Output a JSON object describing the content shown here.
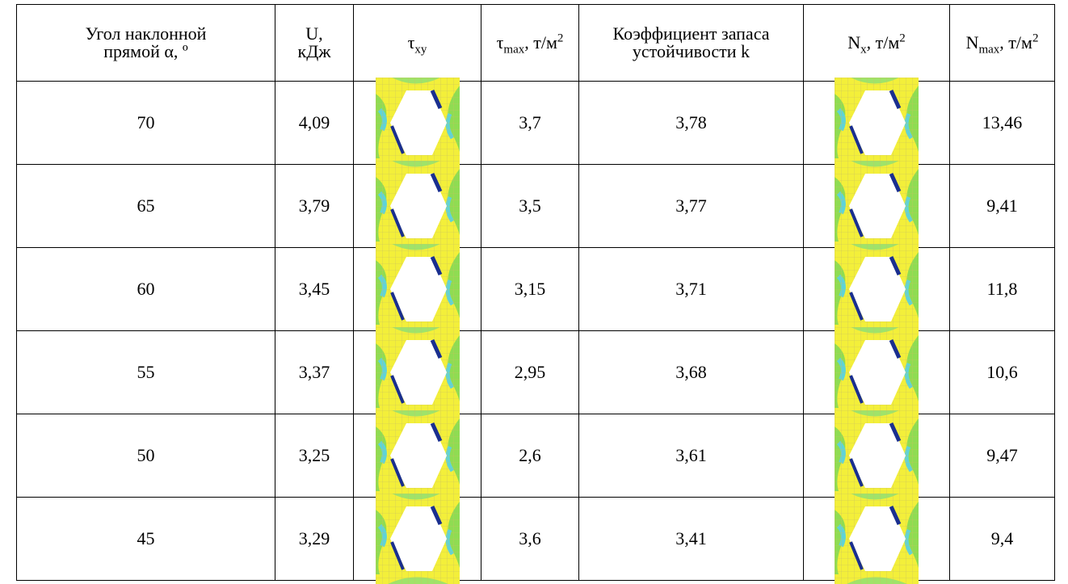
{
  "table": {
    "header": [
      {
        "text": "Угол наклонной прямой α, º"
      },
      {
        "text": "U, кДж"
      },
      {
        "text": "τ",
        "sub": "xy"
      },
      {
        "text": "τ",
        "sub": "max",
        "after": ", т/м",
        "sup": "2"
      },
      {
        "text": "Коэффициент запаса устойчивости k"
      },
      {
        "text": "N",
        "sub": "x",
        "after": ", т/м",
        "sup": "2"
      },
      {
        "text": "N",
        "sub": "max",
        "after": ", т/м",
        "sup": "2"
      }
    ],
    "rows": [
      {
        "angle": "70",
        "U": "4,09",
        "tau_max": "3,7",
        "k": "3,78",
        "N_max": "13,46"
      },
      {
        "angle": "65",
        "U": "3,79",
        "tau_max": "3,5",
        "k": "3,77",
        "N_max": "9,41"
      },
      {
        "angle": "60",
        "U": "3,45",
        "tau_max": "3,15",
        "k": "3,71",
        "N_max": "11,8"
      },
      {
        "angle": "55",
        "U": "3,37",
        "tau_max": "2,95",
        "k": "3,68",
        "N_max": "10,6"
      },
      {
        "angle": "50",
        "U": "3,25",
        "tau_max": "2,6",
        "k": "3,61",
        "N_max": "9,47"
      },
      {
        "angle": "45",
        "U": "3,29",
        "tau_max": "3,6",
        "k": "3,41",
        "N_max": "9,4"
      }
    ]
  }
}
